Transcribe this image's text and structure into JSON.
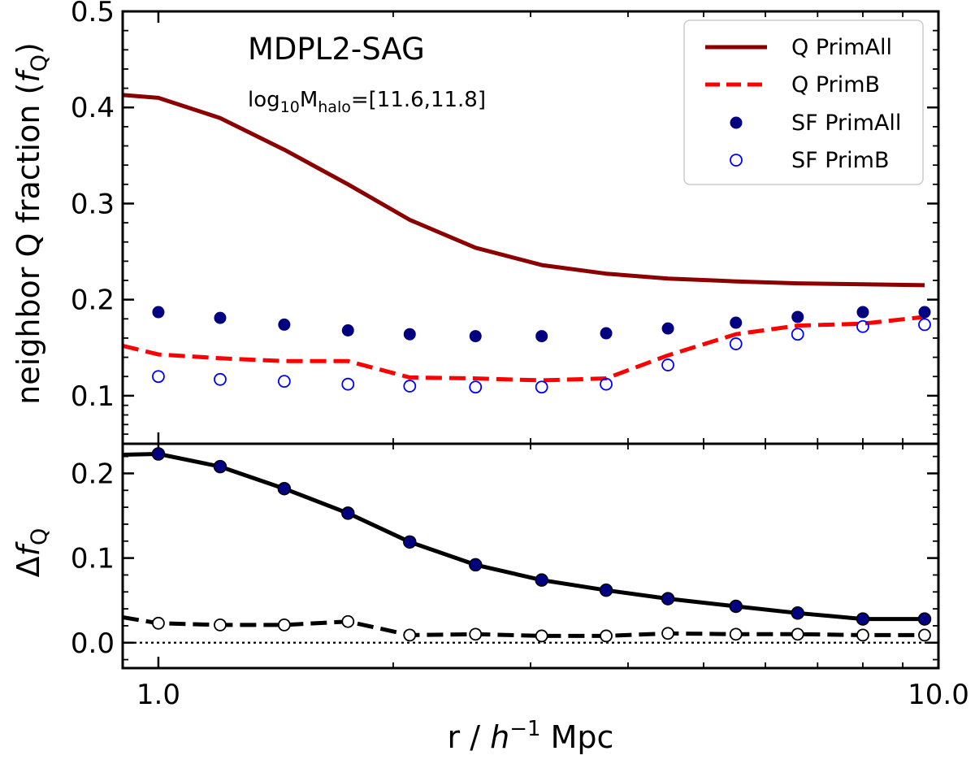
{
  "chart_data": [
    {
      "panel": "top",
      "type": "line",
      "xscale": "log",
      "xlim": [
        0.9,
        10.0
      ],
      "ylim": [
        0.05,
        0.5
      ],
      "ylabel": "neighbor Q fraction (",
      "ylabel_sym": "f",
      "ylabel_sub": "Q",
      "ylabel_end": ")",
      "yticks": [
        0.1,
        0.2,
        0.3,
        0.4,
        0.5
      ],
      "ytick_labels": [
        "0.1",
        "0.2",
        "0.3",
        "0.4",
        "0.5"
      ],
      "yminor": [
        0.06,
        0.07,
        0.08,
        0.09,
        0.12,
        0.14,
        0.16,
        0.18,
        0.22,
        0.24,
        0.26,
        0.28,
        0.32,
        0.34,
        0.36,
        0.38,
        0.42,
        0.44,
        0.46,
        0.48
      ],
      "annotations": {
        "title": "MDPL2-SAG",
        "sub_prefix": "log",
        "sub_base": "10",
        "sub_m": "M",
        "sub_halo": "halo",
        "sub_range": "=[11.6,11.8]"
      },
      "legend": {
        "placement": "top-right",
        "entries": [
          {
            "label": "Q PrimAll",
            "style": "solid-line",
            "color": "#8b0000"
          },
          {
            "label": "Q PrimB",
            "style": "dashed-line",
            "color": "#ff0000"
          },
          {
            "label": "SF PrimAll",
            "style": "filled-circle",
            "color": "#000080"
          },
          {
            "label": "SF PrimB",
            "style": "open-circle",
            "color": "#0000ff"
          }
        ]
      },
      "series": [
        {
          "name": "Q PrimAll",
          "kind": "line",
          "dash": "solid",
          "color": "#8b0000",
          "x": [
            0.9,
            1.0,
            1.2,
            1.45,
            1.75,
            2.1,
            2.55,
            3.1,
            3.75,
            4.5,
            5.5,
            6.6,
            8.0,
            9.6
          ],
          "y": [
            0.413,
            0.41,
            0.389,
            0.356,
            0.32,
            0.283,
            0.254,
            0.236,
            0.227,
            0.222,
            0.219,
            0.217,
            0.216,
            0.215
          ]
        },
        {
          "name": "Q PrimB",
          "kind": "line",
          "dash": "dashed",
          "color": "#ff0000",
          "x": [
            0.9,
            1.0,
            1.2,
            1.45,
            1.75,
            2.1,
            2.55,
            3.1,
            3.75,
            4.5,
            5.5,
            6.6,
            8.0,
            9.6
          ],
          "y": [
            0.152,
            0.143,
            0.139,
            0.136,
            0.136,
            0.119,
            0.118,
            0.116,
            0.118,
            0.142,
            0.164,
            0.173,
            0.175,
            0.182
          ]
        },
        {
          "name": "SF PrimAll",
          "kind": "marker",
          "marker": "filled",
          "color": "#000080",
          "x": [
            1.0,
            1.2,
            1.45,
            1.75,
            2.1,
            2.55,
            3.1,
            3.75,
            4.5,
            5.5,
            6.6,
            8.0,
            9.6
          ],
          "y": [
            0.187,
            0.181,
            0.174,
            0.168,
            0.164,
            0.162,
            0.162,
            0.165,
            0.17,
            0.176,
            0.182,
            0.187,
            0.187
          ]
        },
        {
          "name": "SF PrimB",
          "kind": "marker",
          "marker": "open",
          "color": "#0000ff",
          "x": [
            1.0,
            1.2,
            1.45,
            1.75,
            2.1,
            2.55,
            3.1,
            3.75,
            4.5,
            5.5,
            6.6,
            8.0,
            9.6
          ],
          "y": [
            0.12,
            0.117,
            0.115,
            0.112,
            0.11,
            0.109,
            0.109,
            0.112,
            0.132,
            0.154,
            0.164,
            0.172,
            0.174
          ]
        }
      ]
    },
    {
      "panel": "bottom",
      "type": "line",
      "xscale": "log",
      "xlim": [
        0.9,
        10.0
      ],
      "ylim": [
        -0.03,
        0.235
      ],
      "xlabel_pre": "r / ",
      "xlabel_sym": "h",
      "xlabel_sup": "−1",
      "xlabel_post": " Mpc",
      "ylabel_delta": "Δ",
      "ylabel_sym": "f",
      "ylabel_sub": "Q",
      "xticks": [
        1.0,
        10.0
      ],
      "xtick_labels": [
        "1.0",
        "10.0"
      ],
      "xminor": [
        2,
        3,
        4,
        5,
        6,
        7,
        8,
        9
      ],
      "yticks": [
        0.0,
        0.1,
        0.2
      ],
      "ytick_labels": [
        "0.0",
        "0.1",
        "0.2"
      ],
      "yminor": [
        -0.02,
        0.02,
        0.04,
        0.06,
        0.08,
        0.12,
        0.14,
        0.16,
        0.18,
        0.22
      ],
      "reference_line": {
        "y": 0.0,
        "style": "dotted"
      },
      "series": [
        {
          "name": "PrimAll difference",
          "kind": "line+marker",
          "dash": "solid",
          "marker": "filled",
          "color": "#000000",
          "marker_color": "#000080",
          "x": [
            0.9,
            1.0,
            1.2,
            1.45,
            1.75,
            2.1,
            2.55,
            3.1,
            3.75,
            4.5,
            5.5,
            6.6,
            8.0,
            9.6
          ],
          "y": [
            0.222,
            0.223,
            0.208,
            0.182,
            0.153,
            0.119,
            0.092,
            0.074,
            0.062,
            0.052,
            0.043,
            0.035,
            0.028,
            0.028
          ]
        },
        {
          "name": "PrimB difference",
          "kind": "line+marker",
          "dash": "dashed",
          "marker": "open",
          "color": "#000000",
          "marker_color": "#000000",
          "x": [
            0.9,
            1.0,
            1.2,
            1.45,
            1.75,
            2.1,
            2.55,
            3.1,
            3.75,
            4.5,
            5.5,
            6.6,
            8.0,
            9.6
          ],
          "y": [
            0.03,
            0.023,
            0.021,
            0.021,
            0.025,
            0.009,
            0.01,
            0.008,
            0.008,
            0.011,
            0.01,
            0.01,
            0.009,
            0.009
          ]
        }
      ]
    }
  ]
}
